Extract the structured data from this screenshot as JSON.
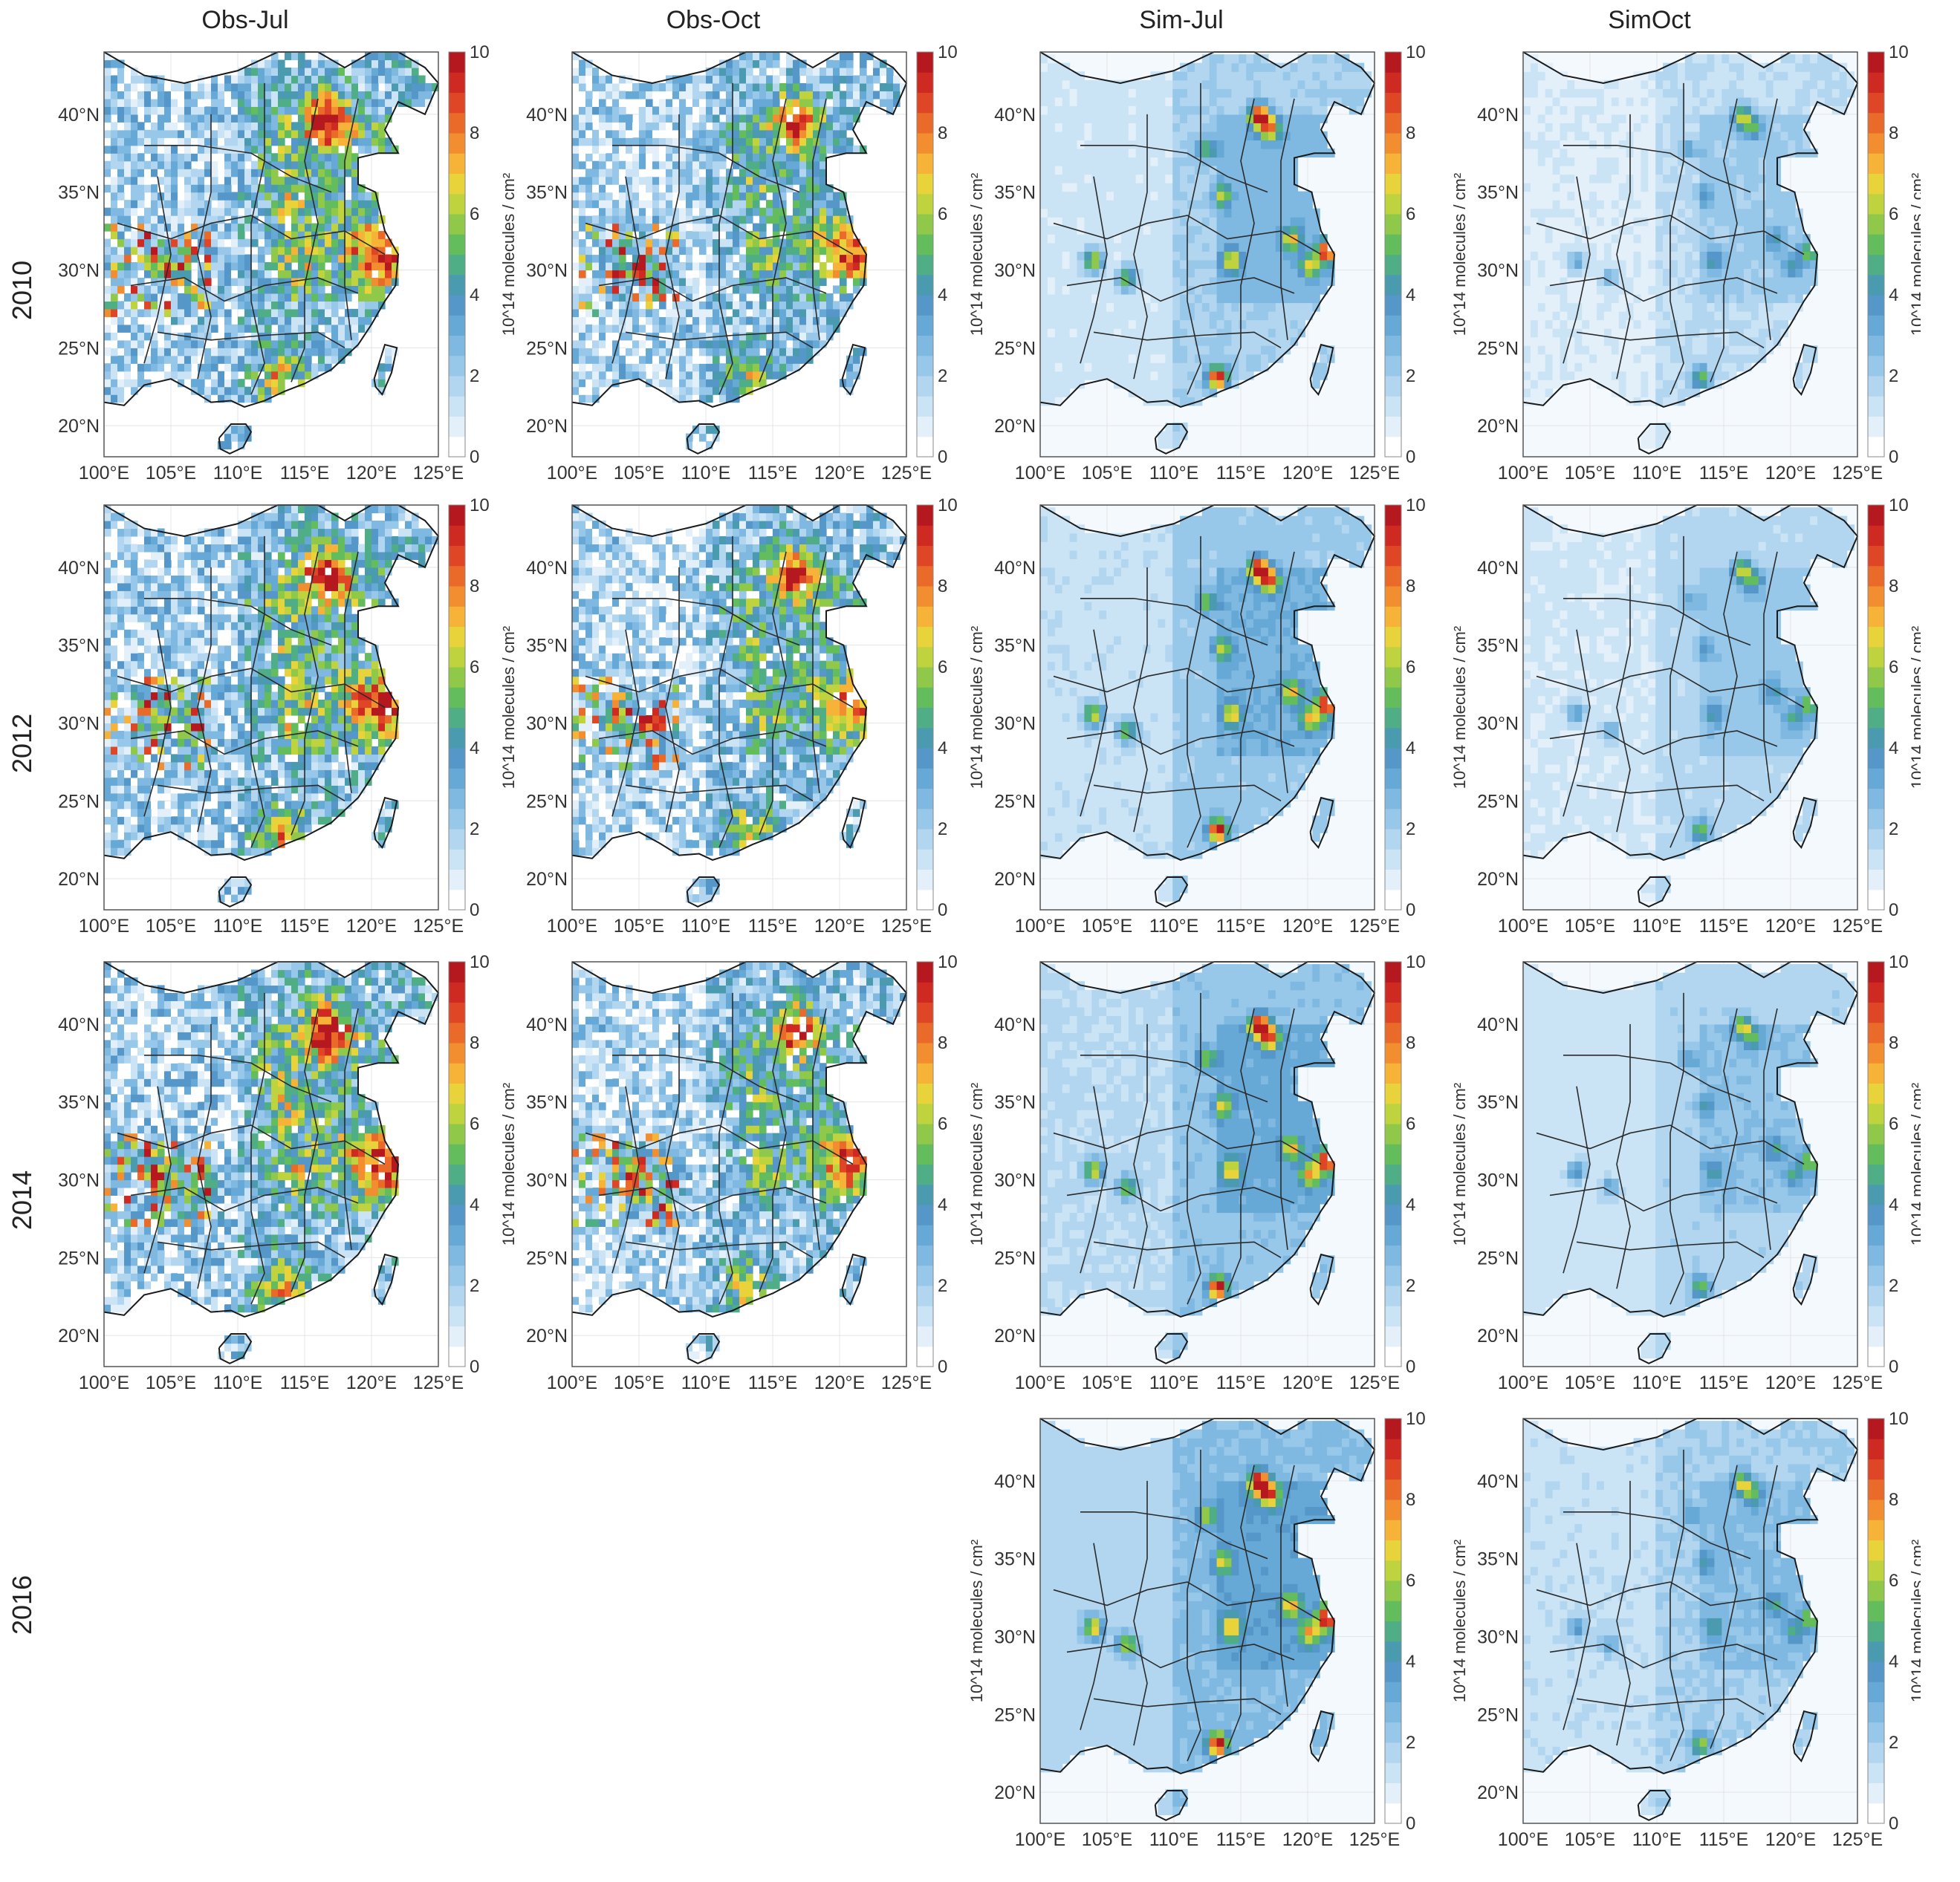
{
  "columns": [
    {
      "key": "obs_jul",
      "title": "Obs-Jul"
    },
    {
      "key": "obs_oct",
      "title": "Obs-Oct"
    },
    {
      "key": "sim_jul",
      "title": "Sim-Jul"
    },
    {
      "key": "sim_oct",
      "title": "SimOct"
    }
  ],
  "rows": [
    {
      "year": "2010",
      "panels": [
        "obs_jul",
        "obs_oct",
        "sim_jul",
        "sim_oct"
      ]
    },
    {
      "year": "2012",
      "panels": [
        "obs_jul",
        "obs_oct",
        "sim_jul",
        "sim_oct"
      ]
    },
    {
      "year": "2014",
      "panels": [
        "obs_jul",
        "obs_oct",
        "sim_jul",
        "sim_oct"
      ]
    },
    {
      "year": "2016",
      "panels": [
        "sim_jul",
        "sim_oct"
      ]
    }
  ],
  "axes": {
    "lon_ticks": [
      "100°E",
      "105°E",
      "110°E",
      "115°E",
      "120°E",
      "125°E"
    ],
    "lat_ticks": [
      "20°N",
      "25°N",
      "30°N",
      "35°N",
      "40°N"
    ],
    "lon_range": [
      100,
      125
    ],
    "lat_range": [
      18,
      44
    ]
  },
  "colorbar": {
    "range": [
      0,
      10
    ],
    "ticks": [
      "0",
      "2",
      "4",
      "6",
      "8",
      "10"
    ],
    "unit_obs": "10^14 molecules / cm²",
    "unit_sim": "10^14 molecules / cm²",
    "colors": [
      "#ffffff",
      "#e3f0fa",
      "#cbe4f5",
      "#b2d6ef",
      "#98c8e9",
      "#7fb8e0",
      "#66a8d6",
      "#5597c8",
      "#4a9ab0",
      "#4fae86",
      "#64bd5c",
      "#90c84a",
      "#bfd33e",
      "#e8d43a",
      "#f6b338",
      "#f28d30",
      "#ea6a2a",
      "#df4626",
      "#cf2a22",
      "#b5181e"
    ]
  }
}
